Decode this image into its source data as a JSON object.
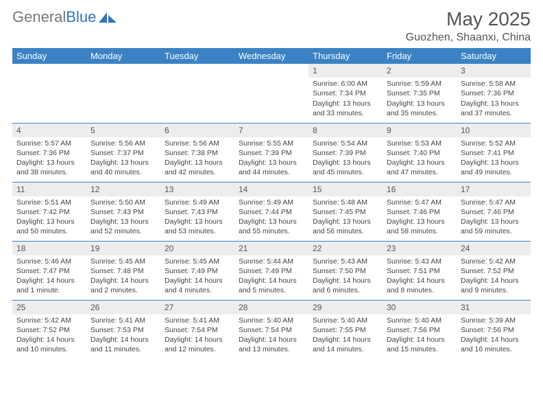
{
  "logo": {
    "part1": "General",
    "part2": "Blue"
  },
  "header": {
    "month_title": "May 2025",
    "location": "Guozhen, Shaanxi, China"
  },
  "colors": {
    "header_bg": "#3a82c4",
    "header_text": "#ffffff",
    "daynum_bg": "#ededed",
    "rule": "#3a82c4"
  },
  "day_headers": [
    "Sunday",
    "Monday",
    "Tuesday",
    "Wednesday",
    "Thursday",
    "Friday",
    "Saturday"
  ],
  "weeks": [
    [
      {
        "empty": true
      },
      {
        "empty": true
      },
      {
        "empty": true
      },
      {
        "empty": true
      },
      {
        "n": "1",
        "sr": "Sunrise: 6:00 AM",
        "ss": "Sunset: 7:34 PM",
        "dl": "Daylight: 13 hours and 33 minutes."
      },
      {
        "n": "2",
        "sr": "Sunrise: 5:59 AM",
        "ss": "Sunset: 7:35 PM",
        "dl": "Daylight: 13 hours and 35 minutes."
      },
      {
        "n": "3",
        "sr": "Sunrise: 5:58 AM",
        "ss": "Sunset: 7:36 PM",
        "dl": "Daylight: 13 hours and 37 minutes."
      }
    ],
    [
      {
        "n": "4",
        "sr": "Sunrise: 5:57 AM",
        "ss": "Sunset: 7:36 PM",
        "dl": "Daylight: 13 hours and 38 minutes."
      },
      {
        "n": "5",
        "sr": "Sunrise: 5:56 AM",
        "ss": "Sunset: 7:37 PM",
        "dl": "Daylight: 13 hours and 40 minutes."
      },
      {
        "n": "6",
        "sr": "Sunrise: 5:56 AM",
        "ss": "Sunset: 7:38 PM",
        "dl": "Daylight: 13 hours and 42 minutes."
      },
      {
        "n": "7",
        "sr": "Sunrise: 5:55 AM",
        "ss": "Sunset: 7:39 PM",
        "dl": "Daylight: 13 hours and 44 minutes."
      },
      {
        "n": "8",
        "sr": "Sunrise: 5:54 AM",
        "ss": "Sunset: 7:39 PM",
        "dl": "Daylight: 13 hours and 45 minutes."
      },
      {
        "n": "9",
        "sr": "Sunrise: 5:53 AM",
        "ss": "Sunset: 7:40 PM",
        "dl": "Daylight: 13 hours and 47 minutes."
      },
      {
        "n": "10",
        "sr": "Sunrise: 5:52 AM",
        "ss": "Sunset: 7:41 PM",
        "dl": "Daylight: 13 hours and 49 minutes."
      }
    ],
    [
      {
        "n": "11",
        "sr": "Sunrise: 5:51 AM",
        "ss": "Sunset: 7:42 PM",
        "dl": "Daylight: 13 hours and 50 minutes."
      },
      {
        "n": "12",
        "sr": "Sunrise: 5:50 AM",
        "ss": "Sunset: 7:43 PM",
        "dl": "Daylight: 13 hours and 52 minutes."
      },
      {
        "n": "13",
        "sr": "Sunrise: 5:49 AM",
        "ss": "Sunset: 7:43 PM",
        "dl": "Daylight: 13 hours and 53 minutes."
      },
      {
        "n": "14",
        "sr": "Sunrise: 5:49 AM",
        "ss": "Sunset: 7:44 PM",
        "dl": "Daylight: 13 hours and 55 minutes."
      },
      {
        "n": "15",
        "sr": "Sunrise: 5:48 AM",
        "ss": "Sunset: 7:45 PM",
        "dl": "Daylight: 13 hours and 56 minutes."
      },
      {
        "n": "16",
        "sr": "Sunrise: 5:47 AM",
        "ss": "Sunset: 7:46 PM",
        "dl": "Daylight: 13 hours and 58 minutes."
      },
      {
        "n": "17",
        "sr": "Sunrise: 5:47 AM",
        "ss": "Sunset: 7:46 PM",
        "dl": "Daylight: 13 hours and 59 minutes."
      }
    ],
    [
      {
        "n": "18",
        "sr": "Sunrise: 5:46 AM",
        "ss": "Sunset: 7:47 PM",
        "dl": "Daylight: 14 hours and 1 minute."
      },
      {
        "n": "19",
        "sr": "Sunrise: 5:45 AM",
        "ss": "Sunset: 7:48 PM",
        "dl": "Daylight: 14 hours and 2 minutes."
      },
      {
        "n": "20",
        "sr": "Sunrise: 5:45 AM",
        "ss": "Sunset: 7:49 PM",
        "dl": "Daylight: 14 hours and 4 minutes."
      },
      {
        "n": "21",
        "sr": "Sunrise: 5:44 AM",
        "ss": "Sunset: 7:49 PM",
        "dl": "Daylight: 14 hours and 5 minutes."
      },
      {
        "n": "22",
        "sr": "Sunrise: 5:43 AM",
        "ss": "Sunset: 7:50 PM",
        "dl": "Daylight: 14 hours and 6 minutes."
      },
      {
        "n": "23",
        "sr": "Sunrise: 5:43 AM",
        "ss": "Sunset: 7:51 PM",
        "dl": "Daylight: 14 hours and 8 minutes."
      },
      {
        "n": "24",
        "sr": "Sunrise: 5:42 AM",
        "ss": "Sunset: 7:52 PM",
        "dl": "Daylight: 14 hours and 9 minutes."
      }
    ],
    [
      {
        "n": "25",
        "sr": "Sunrise: 5:42 AM",
        "ss": "Sunset: 7:52 PM",
        "dl": "Daylight: 14 hours and 10 minutes."
      },
      {
        "n": "26",
        "sr": "Sunrise: 5:41 AM",
        "ss": "Sunset: 7:53 PM",
        "dl": "Daylight: 14 hours and 11 minutes."
      },
      {
        "n": "27",
        "sr": "Sunrise: 5:41 AM",
        "ss": "Sunset: 7:54 PM",
        "dl": "Daylight: 14 hours and 12 minutes."
      },
      {
        "n": "28",
        "sr": "Sunrise: 5:40 AM",
        "ss": "Sunset: 7:54 PM",
        "dl": "Daylight: 14 hours and 13 minutes."
      },
      {
        "n": "29",
        "sr": "Sunrise: 5:40 AM",
        "ss": "Sunset: 7:55 PM",
        "dl": "Daylight: 14 hours and 14 minutes."
      },
      {
        "n": "30",
        "sr": "Sunrise: 5:40 AM",
        "ss": "Sunset: 7:56 PM",
        "dl": "Daylight: 14 hours and 15 minutes."
      },
      {
        "n": "31",
        "sr": "Sunrise: 5:39 AM",
        "ss": "Sunset: 7:56 PM",
        "dl": "Daylight: 14 hours and 16 minutes."
      }
    ]
  ]
}
